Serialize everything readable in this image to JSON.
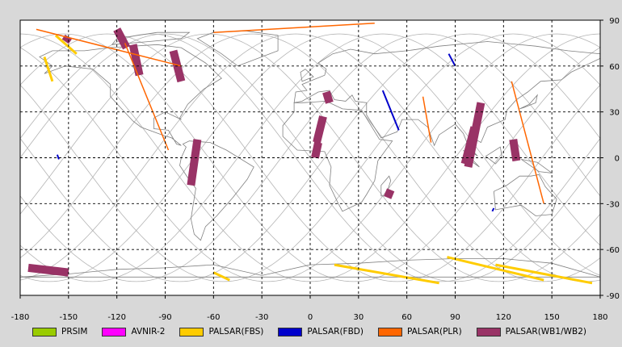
{
  "map": {
    "x_ticks": [
      "-180",
      "-150",
      "-120",
      "-90",
      "-60",
      "-30",
      "0",
      "30",
      "60",
      "90",
      "120",
      "150",
      "180"
    ],
    "y_ticks": [
      "90",
      "60",
      "30",
      "0",
      "-30",
      "-60",
      "-90"
    ],
    "lon_range": [
      -180,
      180
    ],
    "lat_range": [
      -90,
      90
    ],
    "grid": true,
    "colors": {
      "background": "#ffffff",
      "coast": "#808080",
      "orbit": "#b4b4b4",
      "grid": "#000000"
    }
  },
  "legend": [
    {
      "label": "PRSIM",
      "color": "#99cc00"
    },
    {
      "label": "AVNIR-2",
      "color": "#ff00ff"
    },
    {
      "label": "PALSAR(FBS)",
      "color": "#ffcc00"
    },
    {
      "label": "PALSAR(FBD)",
      "color": "#0000cc"
    },
    {
      "label": "PALSAR(PLR)",
      "color": "#ff6600"
    },
    {
      "label": "PALSAR(WB1/WB2)",
      "color": "#993366"
    }
  ],
  "swaths": {
    "wb": [
      {
        "lon": [
          -150,
          79
        ],
        "lat": [
          -152,
          76
        ]
      },
      {
        "lon": [
          -120,
          84
        ],
        "lat": [
          -114,
          72
        ]
      },
      {
        "lon": [
          -110,
          74
        ],
        "lat": [
          -106,
          54
        ]
      },
      {
        "lon": [
          -85,
          70
        ],
        "lat": [
          -80,
          50
        ]
      },
      {
        "lon": [
          -70,
          12
        ],
        "lat": [
          -74,
          -18
        ]
      },
      {
        "lon": [
          10,
          43
        ],
        "lat": [
          12,
          36
        ]
      },
      {
        "lon": [
          8,
          27
        ],
        "lat": [
          4,
          10
        ]
      },
      {
        "lon": [
          5,
          10
        ],
        "lat": [
          3,
          0
        ]
      },
      {
        "lon": [
          50,
          -21
        ],
        "lat": [
          48,
          -26
        ]
      },
      {
        "lon": [
          106,
          36
        ],
        "lat": [
          98,
          -6
        ]
      },
      {
        "lon": [
          102,
          20
        ],
        "lat": [
          96,
          -4
        ]
      },
      {
        "lon": [
          126,
          12
        ],
        "lat": [
          128,
          -2
        ]
      },
      {
        "lon": [
          -175,
          -72
        ],
        "lat": [
          -150,
          -75
        ]
      }
    ],
    "fbs": [
      {
        "lon": [
          -158,
          80
        ],
        "lat": [
          -145,
          68
        ]
      },
      {
        "lon": [
          -165,
          66
        ],
        "lat": [
          -160,
          50
        ]
      },
      {
        "lon": [
          -60,
          -75
        ],
        "lat": [
          -50,
          -80
        ]
      },
      {
        "lon": [
          15,
          -70
        ],
        "lat": [
          80,
          -82
        ]
      },
      {
        "lon": [
          85,
          -65
        ],
        "lat": [
          145,
          -80
        ]
      },
      {
        "lon": [
          115,
          -70
        ],
        "lat": [
          175,
          -82
        ]
      }
    ],
    "fbd": [
      {
        "lon": [
          45,
          44
        ],
        "lat": [
          55,
          18
        ]
      },
      {
        "lon": [
          86,
          68
        ],
        "lat": [
          90,
          60
        ]
      },
      {
        "lon": [
          -157,
          2
        ],
        "lat": [
          -156,
          -1
        ]
      },
      {
        "lon": [
          114,
          -33
        ],
        "lat": [
          113,
          -35
        ]
      }
    ],
    "plr": [
      {
        "lon": [
          -170,
          84
        ],
        "lat": [
          -80,
          60
        ]
      },
      {
        "lon": [
          -115,
          75
        ],
        "lat": [
          -88,
          5
        ]
      },
      {
        "lon": [
          -60,
          82
        ],
        "lat": [
          40,
          88
        ]
      },
      {
        "lon": [
          70,
          40
        ],
        "lat": [
          75,
          10
        ]
      },
      {
        "lon": [
          125,
          50
        ],
        "lat": [
          145,
          -30
        ]
      }
    ]
  }
}
